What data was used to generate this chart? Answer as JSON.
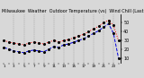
{
  "title": "Milwaukee  Weather  Outdoor Temperature (vs)  Wind Chill (Last 24 Hours)",
  "title_fontsize": 3.5,
  "background_color": "#d8d8d8",
  "plot_bg_color": "#d8d8d8",
  "line1_color": "#ff0000",
  "line2_color": "#0000dd",
  "marker1_color": "#000000",
  "marker2_color": "#000000",
  "ylabel_fontsize": 3.5,
  "xlabel_fontsize": 3.0,
  "temp_values": [
    30,
    28,
    27,
    26,
    25,
    27,
    28,
    27,
    26,
    28,
    30,
    28,
    30,
    31,
    33,
    35,
    37,
    40,
    43,
    46,
    50,
    53,
    47,
    30
  ],
  "chill_values": [
    22,
    20,
    18,
    17,
    16,
    18,
    19,
    18,
    17,
    20,
    23,
    22,
    25,
    26,
    28,
    30,
    32,
    35,
    38,
    41,
    45,
    49,
    38,
    10
  ],
  "x_labels": [
    "1",
    "",
    "3",
    "",
    "5",
    "",
    "7",
    "",
    "9",
    "",
    "11",
    "",
    "13",
    "",
    "15",
    "",
    "17",
    "",
    "19",
    "",
    "21",
    "",
    "23",
    ""
  ],
  "y_ticks": [
    10,
    20,
    30,
    40,
    50
  ],
  "ylim": [
    5,
    60
  ],
  "xlim": [
    -0.5,
    23.5
  ],
  "vgrid_positions": [
    2,
    4,
    6,
    8,
    10,
    12,
    14,
    16,
    18,
    20,
    22
  ],
  "marker_size": 1.2,
  "linewidth": 0.7
}
